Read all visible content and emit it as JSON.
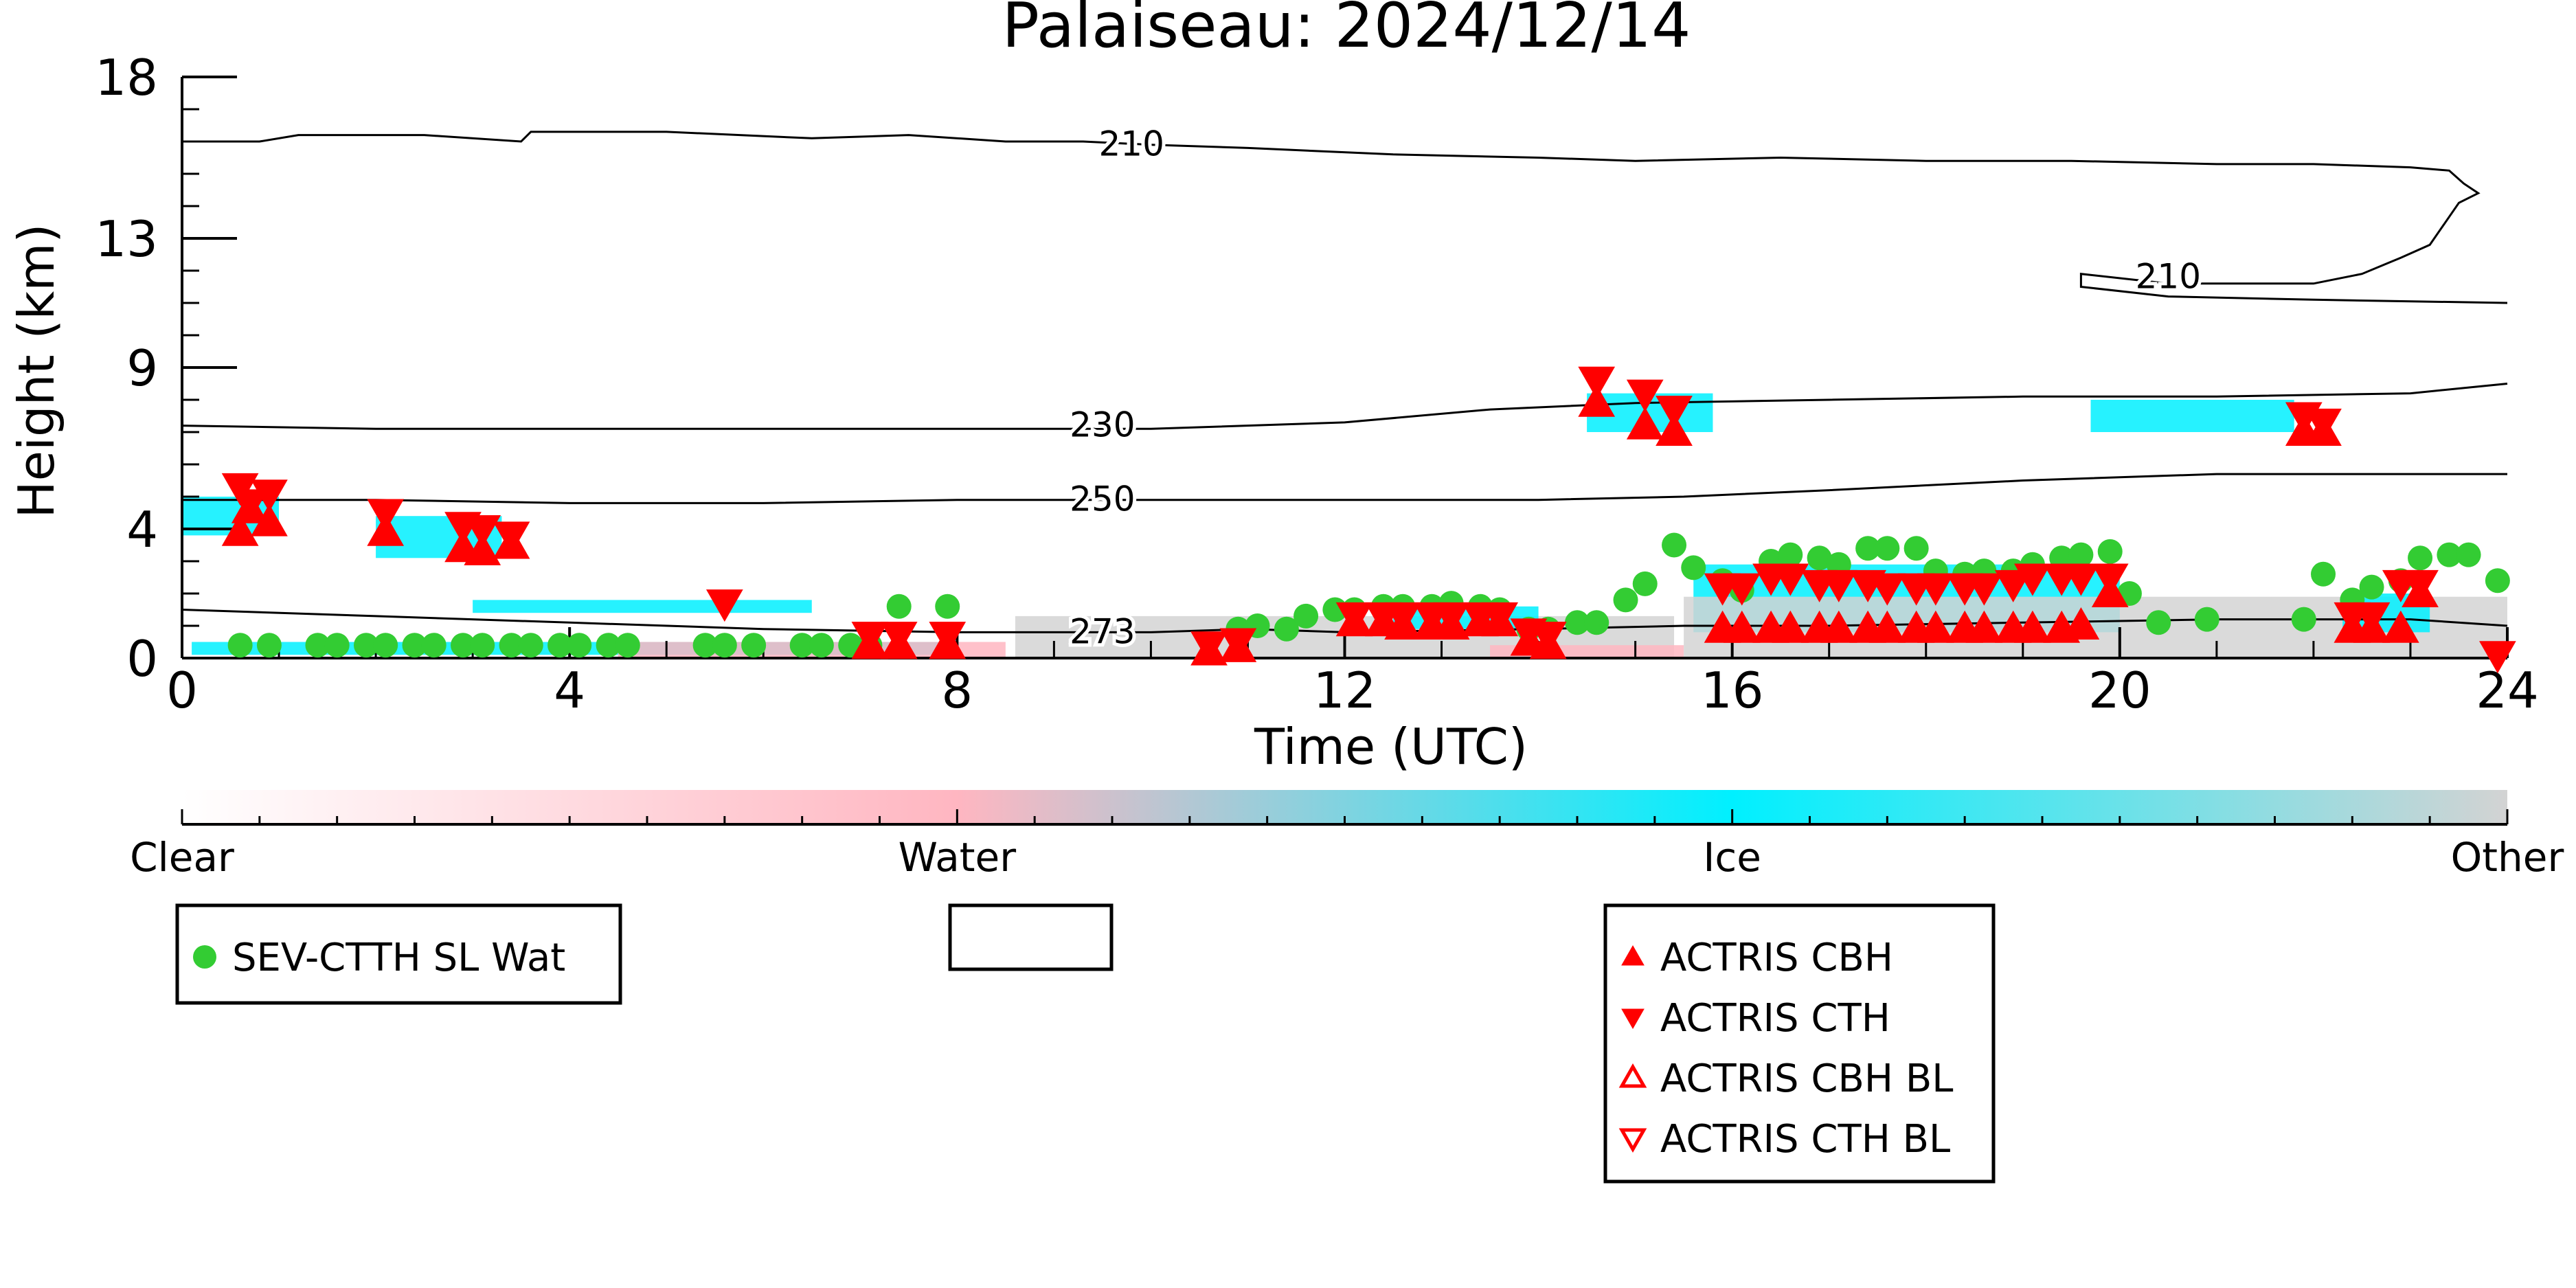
{
  "chart_data": {
    "type": "scatter",
    "title": "Palaiseau: 2024/12/14",
    "xlabel": "Time (UTC)",
    "ylabel": "Height (km)",
    "xlim": [
      0,
      24
    ],
    "ylim": [
      0,
      18
    ],
    "x_ticks": [
      0,
      4,
      8,
      12,
      16,
      20,
      24
    ],
    "y_ticks": [
      0,
      4,
      9,
      13,
      18
    ],
    "colorbar": {
      "labels": [
        "Clear",
        "Water",
        "Ice",
        "Other"
      ],
      "colors": [
        "#ffffff",
        "#ffb6c1",
        "#00f0ff",
        "#d3d3d3"
      ]
    },
    "contours": [
      {
        "label": "210",
        "points": [
          [
            0,
            16.0
          ],
          [
            0.8,
            16.0
          ],
          [
            1.2,
            16.2
          ],
          [
            2.5,
            16.2
          ],
          [
            3.5,
            16.0
          ],
          [
            3.6,
            16.3
          ],
          [
            5,
            16.3
          ],
          [
            6.5,
            16.1
          ],
          [
            7.5,
            16.2
          ],
          [
            8.5,
            16.0
          ],
          [
            9.3,
            16.0
          ],
          [
            10,
            15.9
          ],
          [
            11,
            15.8
          ],
          [
            12.5,
            15.6
          ],
          [
            14,
            15.5
          ],
          [
            15,
            15.4
          ],
          [
            16.5,
            15.5
          ],
          [
            18,
            15.4
          ],
          [
            19.5,
            15.4
          ],
          [
            21,
            15.3
          ],
          [
            22,
            15.3
          ],
          [
            23,
            15.2
          ],
          [
            23.4,
            15.1
          ],
          [
            23.55,
            14.7
          ],
          [
            23.7,
            14.4
          ],
          [
            23.5,
            14.1
          ],
          [
            23.2,
            12.8
          ],
          [
            22.9,
            12.4
          ],
          [
            22.5,
            11.9
          ],
          [
            22,
            11.6
          ],
          [
            20.5,
            11.6
          ],
          [
            19.6,
            11.9
          ],
          [
            19.6,
            11.5
          ],
          [
            20.5,
            11.2
          ],
          [
            22,
            11.1
          ],
          [
            24,
            11.0
          ]
        ],
        "label_positions": [
          [
            9.8,
            15.9
          ],
          [
            20.5,
            11.8
          ]
        ]
      },
      {
        "label": "230",
        "points": [
          [
            0,
            7.2
          ],
          [
            2,
            7.1
          ],
          [
            4,
            7.1
          ],
          [
            6,
            7.1
          ],
          [
            8,
            7.1
          ],
          [
            10,
            7.1
          ],
          [
            12,
            7.3
          ],
          [
            13.5,
            7.7
          ],
          [
            15,
            7.9
          ],
          [
            17,
            8.0
          ],
          [
            19,
            8.1
          ],
          [
            21,
            8.1
          ],
          [
            23,
            8.2
          ],
          [
            24,
            8.5
          ]
        ],
        "label_positions": [
          [
            9.5,
            7.2
          ]
        ]
      },
      {
        "label": "250",
        "points": [
          [
            0,
            4.9
          ],
          [
            2,
            4.9
          ],
          [
            4,
            4.8
          ],
          [
            6,
            4.8
          ],
          [
            8,
            4.9
          ],
          [
            10,
            4.9
          ],
          [
            12,
            4.9
          ],
          [
            14,
            4.9
          ],
          [
            15.5,
            5.0
          ],
          [
            17,
            5.2
          ],
          [
            19,
            5.5
          ],
          [
            21,
            5.7
          ],
          [
            23,
            5.7
          ],
          [
            24,
            5.7
          ]
        ],
        "label_positions": [
          [
            9.5,
            4.9
          ]
        ]
      },
      {
        "label": "273",
        "points": [
          [
            0,
            1.5
          ],
          [
            2,
            1.3
          ],
          [
            4,
            1.1
          ],
          [
            6,
            0.9
          ],
          [
            8,
            0.8
          ],
          [
            10,
            0.8
          ],
          [
            11,
            0.9
          ],
          [
            12,
            0.8
          ],
          [
            14,
            0.9
          ],
          [
            15.5,
            1.0
          ],
          [
            17,
            1.0
          ],
          [
            19,
            1.1
          ],
          [
            21,
            1.2
          ],
          [
            23,
            1.2
          ],
          [
            24,
            1.0
          ]
        ],
        "label_positions": [
          [
            9.5,
            0.8
          ]
        ]
      }
    ],
    "cloud_regions": [
      {
        "class": "Ice",
        "color": "#00f0ff",
        "x0": 0,
        "x1": 1.0,
        "y0": 3.8,
        "y1": 5.0
      },
      {
        "class": "Ice",
        "color": "#00f0ff",
        "x0": 2.0,
        "x1": 3.3,
        "y0": 3.1,
        "y1": 4.4
      },
      {
        "class": "Ice",
        "color": "#00f0ff",
        "x0": 3.0,
        "x1": 6.5,
        "y0": 1.4,
        "y1": 1.8
      },
      {
        "class": "Ice",
        "color": "#00f0ff",
        "x0": 0.1,
        "x1": 8.0,
        "y0": 0.1,
        "y1": 0.5
      },
      {
        "class": "Other",
        "color": "#d3d3d3",
        "x0": 8.6,
        "x1": 15.4,
        "y0": 0.0,
        "y1": 1.3
      },
      {
        "class": "Ice",
        "color": "#00f0ff",
        "x0": 12.5,
        "x1": 14.0,
        "y0": 0.9,
        "y1": 1.6
      },
      {
        "class": "Water",
        "color": "#ffb6c1",
        "x0": 4.5,
        "x1": 8.5,
        "y0": 0.0,
        "y1": 0.5
      },
      {
        "class": "Water",
        "color": "#ffb6c1",
        "x0": 13.5,
        "x1": 15.5,
        "y0": 0.0,
        "y1": 0.4
      },
      {
        "class": "Ice",
        "color": "#00f0ff",
        "x0": 14.5,
        "x1": 15.8,
        "y0": 7.0,
        "y1": 8.2
      },
      {
        "class": "Ice",
        "color": "#00f0ff",
        "x0": 19.7,
        "x1": 21.8,
        "y0": 7.0,
        "y1": 8.0
      },
      {
        "class": "Ice",
        "color": "#00f0ff",
        "x0": 15.6,
        "x1": 20.0,
        "y0": 0.8,
        "y1": 2.9
      },
      {
        "class": "Other",
        "color": "#d3d3d3",
        "x0": 15.5,
        "x1": 24.0,
        "y0": 0.0,
        "y1": 1.9
      },
      {
        "class": "Ice",
        "color": "#00f0ff",
        "x0": 22.3,
        "x1": 23.2,
        "y0": 0.8,
        "y1": 2.0
      }
    ],
    "series": [
      {
        "name": "SEV-CTTH SL Wat",
        "marker": "circle",
        "color": "#33cc33",
        "points": [
          [
            0.6,
            0.4
          ],
          [
            0.9,
            0.4
          ],
          [
            1.4,
            0.4
          ],
          [
            1.6,
            0.4
          ],
          [
            1.9,
            0.4
          ],
          [
            2.1,
            0.4
          ],
          [
            2.4,
            0.4
          ],
          [
            2.6,
            0.4
          ],
          [
            2.9,
            0.4
          ],
          [
            3.1,
            0.4
          ],
          [
            3.4,
            0.4
          ],
          [
            3.6,
            0.4
          ],
          [
            3.9,
            0.4
          ],
          [
            4.1,
            0.4
          ],
          [
            4.4,
            0.4
          ],
          [
            4.6,
            0.4
          ],
          [
            5.4,
            0.4
          ],
          [
            5.6,
            0.4
          ],
          [
            5.9,
            0.4
          ],
          [
            6.4,
            0.4
          ],
          [
            6.6,
            0.4
          ],
          [
            6.9,
            0.4
          ],
          [
            7.1,
            0.4
          ],
          [
            7.4,
            1.6
          ],
          [
            7.9,
            1.6
          ],
          [
            10.9,
            0.9
          ],
          [
            11.1,
            1.0
          ],
          [
            11.4,
            0.9
          ],
          [
            11.6,
            1.3
          ],
          [
            11.9,
            1.5
          ],
          [
            12.1,
            1.5
          ],
          [
            12.4,
            1.6
          ],
          [
            12.6,
            1.6
          ],
          [
            12.9,
            1.6
          ],
          [
            13.1,
            1.7
          ],
          [
            13.4,
            1.6
          ],
          [
            13.6,
            1.5
          ],
          [
            13.9,
            0.9
          ],
          [
            14.1,
            0.9
          ],
          [
            14.4,
            1.1
          ],
          [
            14.6,
            1.1
          ],
          [
            14.9,
            1.8
          ],
          [
            15.1,
            2.3
          ],
          [
            15.4,
            3.5
          ],
          [
            15.6,
            2.8
          ],
          [
            15.9,
            2.4
          ],
          [
            16.1,
            2.1
          ],
          [
            16.4,
            3.0
          ],
          [
            16.6,
            3.2
          ],
          [
            16.9,
            3.1
          ],
          [
            17.1,
            2.9
          ],
          [
            17.4,
            3.4
          ],
          [
            17.6,
            3.4
          ],
          [
            17.9,
            3.4
          ],
          [
            18.1,
            2.7
          ],
          [
            18.4,
            2.6
          ],
          [
            18.6,
            2.7
          ],
          [
            18.9,
            2.7
          ],
          [
            19.1,
            2.9
          ],
          [
            19.4,
            3.1
          ],
          [
            19.6,
            3.2
          ],
          [
            19.9,
            3.3
          ],
          [
            20.1,
            2.0
          ],
          [
            20.4,
            1.1
          ],
          [
            20.9,
            1.2
          ],
          [
            21.9,
            1.2
          ],
          [
            22.1,
            2.6
          ],
          [
            22.4,
            1.8
          ],
          [
            22.6,
            2.2
          ],
          [
            22.9,
            2.4
          ],
          [
            23.1,
            3.1
          ],
          [
            23.4,
            3.2
          ],
          [
            23.6,
            3.2
          ],
          [
            23.9,
            2.4
          ]
        ]
      },
      {
        "name": "ACTRIS CBH",
        "marker": "triangle-up",
        "color": "#ff0000",
        "filled": true,
        "points": [
          [
            0.6,
            3.9
          ],
          [
            0.9,
            4.2
          ],
          [
            0.7,
            4.6
          ],
          [
            2.1,
            3.9
          ],
          [
            2.9,
            3.4
          ],
          [
            3.1,
            3.3
          ],
          [
            3.4,
            3.5
          ],
          [
            7.1,
            0.4
          ],
          [
            7.4,
            0.4
          ],
          [
            7.9,
            0.4
          ],
          [
            10.6,
            0.2
          ],
          [
            10.9,
            0.3
          ],
          [
            12.1,
            1.1
          ],
          [
            12.4,
            1.1
          ],
          [
            12.6,
            1.0
          ],
          [
            12.9,
            1.0
          ],
          [
            13.1,
            1.0
          ],
          [
            13.4,
            1.1
          ],
          [
            13.6,
            1.1
          ],
          [
            13.9,
            0.5
          ],
          [
            14.1,
            0.4
          ],
          [
            14.6,
            7.9
          ],
          [
            15.1,
            7.2
          ],
          [
            15.4,
            7.0
          ],
          [
            15.9,
            0.9
          ],
          [
            16.1,
            0.9
          ],
          [
            16.4,
            0.9
          ],
          [
            16.6,
            0.9
          ],
          [
            16.9,
            0.9
          ],
          [
            17.1,
            0.9
          ],
          [
            17.4,
            0.9
          ],
          [
            17.6,
            0.9
          ],
          [
            17.9,
            0.9
          ],
          [
            18.1,
            0.9
          ],
          [
            18.4,
            0.9
          ],
          [
            18.6,
            0.9
          ],
          [
            18.9,
            0.9
          ],
          [
            19.1,
            0.9
          ],
          [
            19.4,
            0.9
          ],
          [
            19.6,
            1.0
          ],
          [
            19.9,
            2.0
          ],
          [
            21.9,
            7.0
          ],
          [
            22.1,
            7.0
          ],
          [
            22.4,
            0.9
          ],
          [
            22.6,
            0.9
          ],
          [
            22.9,
            0.9
          ],
          [
            23.1,
            2.0
          ]
        ]
      },
      {
        "name": "ACTRIS CTH",
        "marker": "triangle-down",
        "color": "#ff0000",
        "filled": true,
        "points": [
          [
            0.6,
            5.3
          ],
          [
            0.9,
            5.1
          ],
          [
            0.7,
            4.8
          ],
          [
            2.1,
            4.5
          ],
          [
            2.9,
            4.1
          ],
          [
            3.1,
            4.0
          ],
          [
            3.4,
            3.8
          ],
          [
            5.6,
            1.7
          ],
          [
            7.1,
            0.7
          ],
          [
            7.4,
            0.7
          ],
          [
            7.9,
            0.7
          ],
          [
            10.6,
            0.4
          ],
          [
            10.9,
            0.5
          ],
          [
            12.1,
            1.3
          ],
          [
            12.4,
            1.3
          ],
          [
            12.6,
            1.3
          ],
          [
            12.9,
            1.3
          ],
          [
            13.1,
            1.3
          ],
          [
            13.4,
            1.3
          ],
          [
            13.6,
            1.3
          ],
          [
            13.9,
            0.8
          ],
          [
            14.1,
            0.7
          ],
          [
            14.6,
            8.6
          ],
          [
            15.1,
            8.2
          ],
          [
            15.4,
            7.7
          ],
          [
            15.9,
            2.2
          ],
          [
            16.1,
            2.2
          ],
          [
            16.4,
            2.5
          ],
          [
            16.6,
            2.5
          ],
          [
            16.9,
            2.3
          ],
          [
            17.1,
            2.3
          ],
          [
            17.4,
            2.3
          ],
          [
            17.6,
            2.2
          ],
          [
            17.9,
            2.2
          ],
          [
            18.1,
            2.2
          ],
          [
            18.4,
            2.2
          ],
          [
            18.6,
            2.2
          ],
          [
            18.9,
            2.3
          ],
          [
            19.1,
            2.5
          ],
          [
            19.4,
            2.5
          ],
          [
            19.6,
            2.5
          ],
          [
            19.9,
            2.5
          ],
          [
            21.9,
            7.5
          ],
          [
            22.1,
            7.3
          ],
          [
            22.4,
            1.3
          ],
          [
            22.6,
            1.3
          ],
          [
            22.9,
            2.3
          ],
          [
            23.1,
            2.3
          ],
          [
            23.9,
            0.1
          ]
        ]
      },
      {
        "name": "ACTRIS CBH BL",
        "marker": "triangle-up-open",
        "color": "#ff0000",
        "filled": false,
        "points": []
      },
      {
        "name": "ACTRIS CTH BL",
        "marker": "triangle-down-open",
        "color": "#ff0000",
        "filled": false,
        "points": []
      }
    ],
    "legend": {
      "left": [
        "SEV-CTTH SL Wat"
      ],
      "middle": [],
      "right": [
        "ACTRIS CBH",
        "ACTRIS CTH",
        "ACTRIS CBH BL",
        "ACTRIS CTH BL"
      ]
    }
  }
}
